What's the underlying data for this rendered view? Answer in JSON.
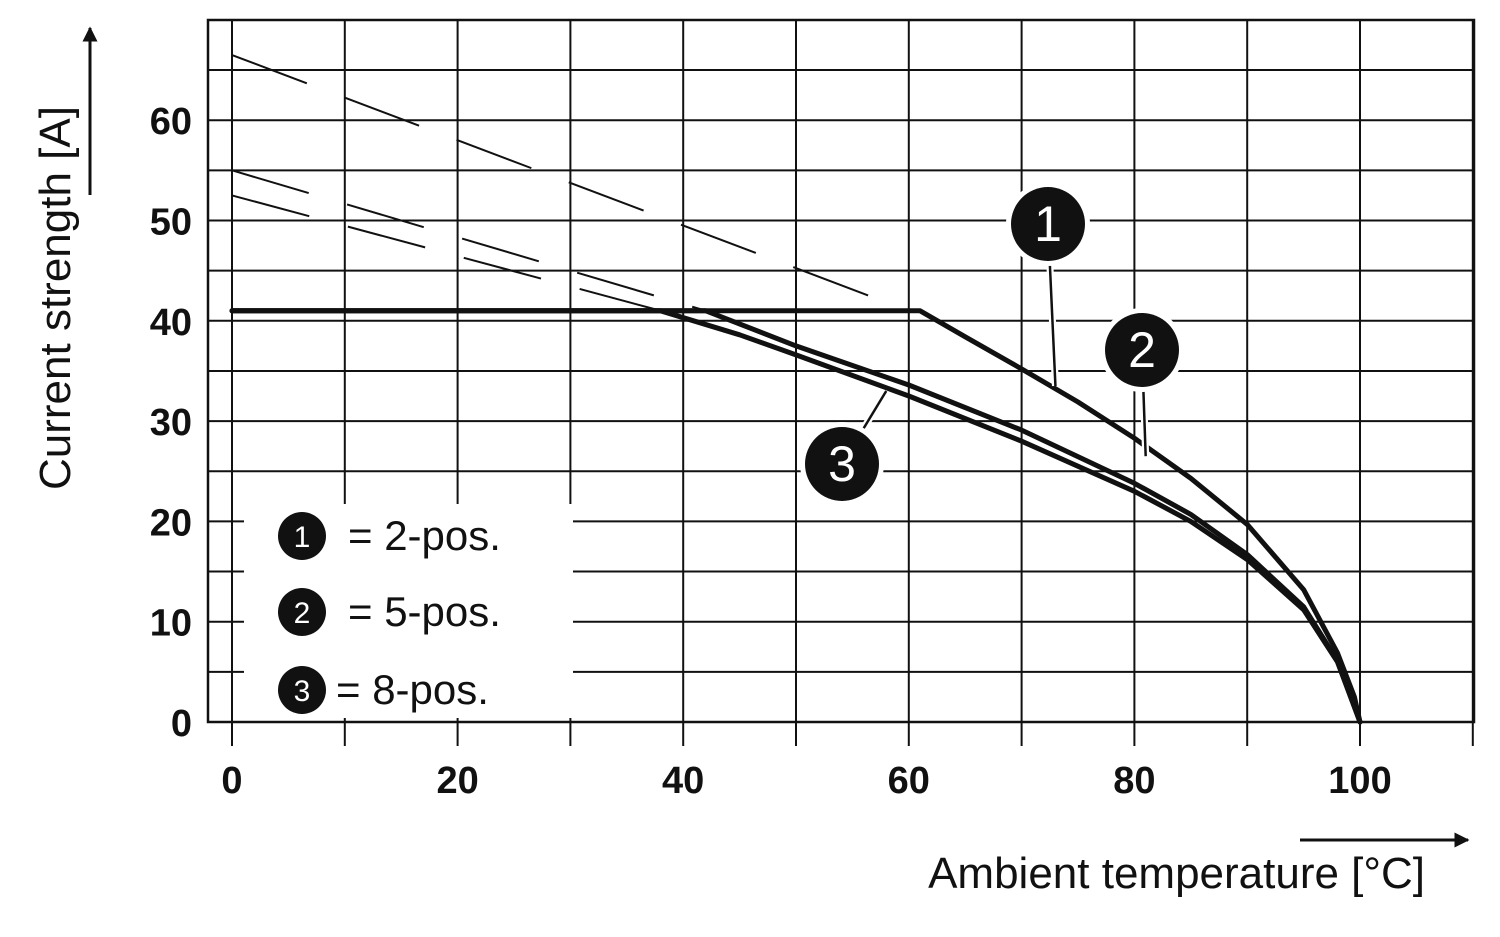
{
  "chart_data": {
    "type": "line",
    "xlabel": "Ambient temperature [°C]",
    "ylabel": "Current strength [A]",
    "xlim": [
      0,
      110
    ],
    "ylim": [
      0,
      70
    ],
    "x_ticks": [
      0,
      20,
      40,
      60,
      80,
      100
    ],
    "y_ticks": [
      0,
      10,
      20,
      30,
      40,
      50,
      60
    ],
    "grid": true,
    "legend_position": "bottom-left",
    "legend": [
      {
        "badge": "1",
        "text": "= 2-pos."
      },
      {
        "badge": "2",
        "text": "= 5-pos."
      },
      {
        "badge": "3",
        "text": "= 8-pos."
      }
    ],
    "series": [
      {
        "badge": "1",
        "points": [
          [
            0,
            41
          ],
          [
            61,
            41
          ],
          [
            65,
            38.4
          ],
          [
            70,
            35.2
          ],
          [
            75,
            31.9
          ],
          [
            80,
            28.3
          ],
          [
            85,
            24.3
          ],
          [
            90,
            19.7
          ],
          [
            95,
            13.2
          ],
          [
            98,
            6.9
          ],
          [
            99.5,
            2.5
          ],
          [
            100,
            0
          ]
        ],
        "dashed_extension": [
          [
            0,
            66.5
          ],
          [
            60,
            41
          ]
        ]
      },
      {
        "badge": "2",
        "points": [
          [
            0,
            41
          ],
          [
            42,
            41
          ],
          [
            50,
            37.5
          ],
          [
            60,
            33.6
          ],
          [
            70,
            29.1
          ],
          [
            80,
            23.8
          ],
          [
            85,
            20.7
          ],
          [
            90,
            16.7
          ],
          [
            95,
            11.5
          ],
          [
            98,
            6.1
          ],
          [
            100,
            0
          ]
        ],
        "dashed_extension": [
          [
            0,
            55
          ],
          [
            42,
            41
          ]
        ]
      },
      {
        "badge": "3",
        "points": [
          [
            0,
            41
          ],
          [
            38,
            41
          ],
          [
            45,
            38.6
          ],
          [
            50,
            36.6
          ],
          [
            60,
            32.5
          ],
          [
            70,
            28.0
          ],
          [
            80,
            23.0
          ],
          [
            85,
            20.0
          ],
          [
            90,
            16.2
          ],
          [
            95,
            11.2
          ],
          [
            98,
            6.0
          ],
          [
            100,
            0
          ]
        ],
        "dashed_extension": [
          [
            0,
            52.5
          ],
          [
            38,
            41
          ]
        ]
      }
    ],
    "callouts": [
      {
        "badge": "1",
        "at": [
          73,
          33.5
        ]
      },
      {
        "badge": "2",
        "at": [
          81,
          26.5
        ]
      },
      {
        "badge": "3",
        "at": [
          58,
          33
        ]
      }
    ]
  }
}
